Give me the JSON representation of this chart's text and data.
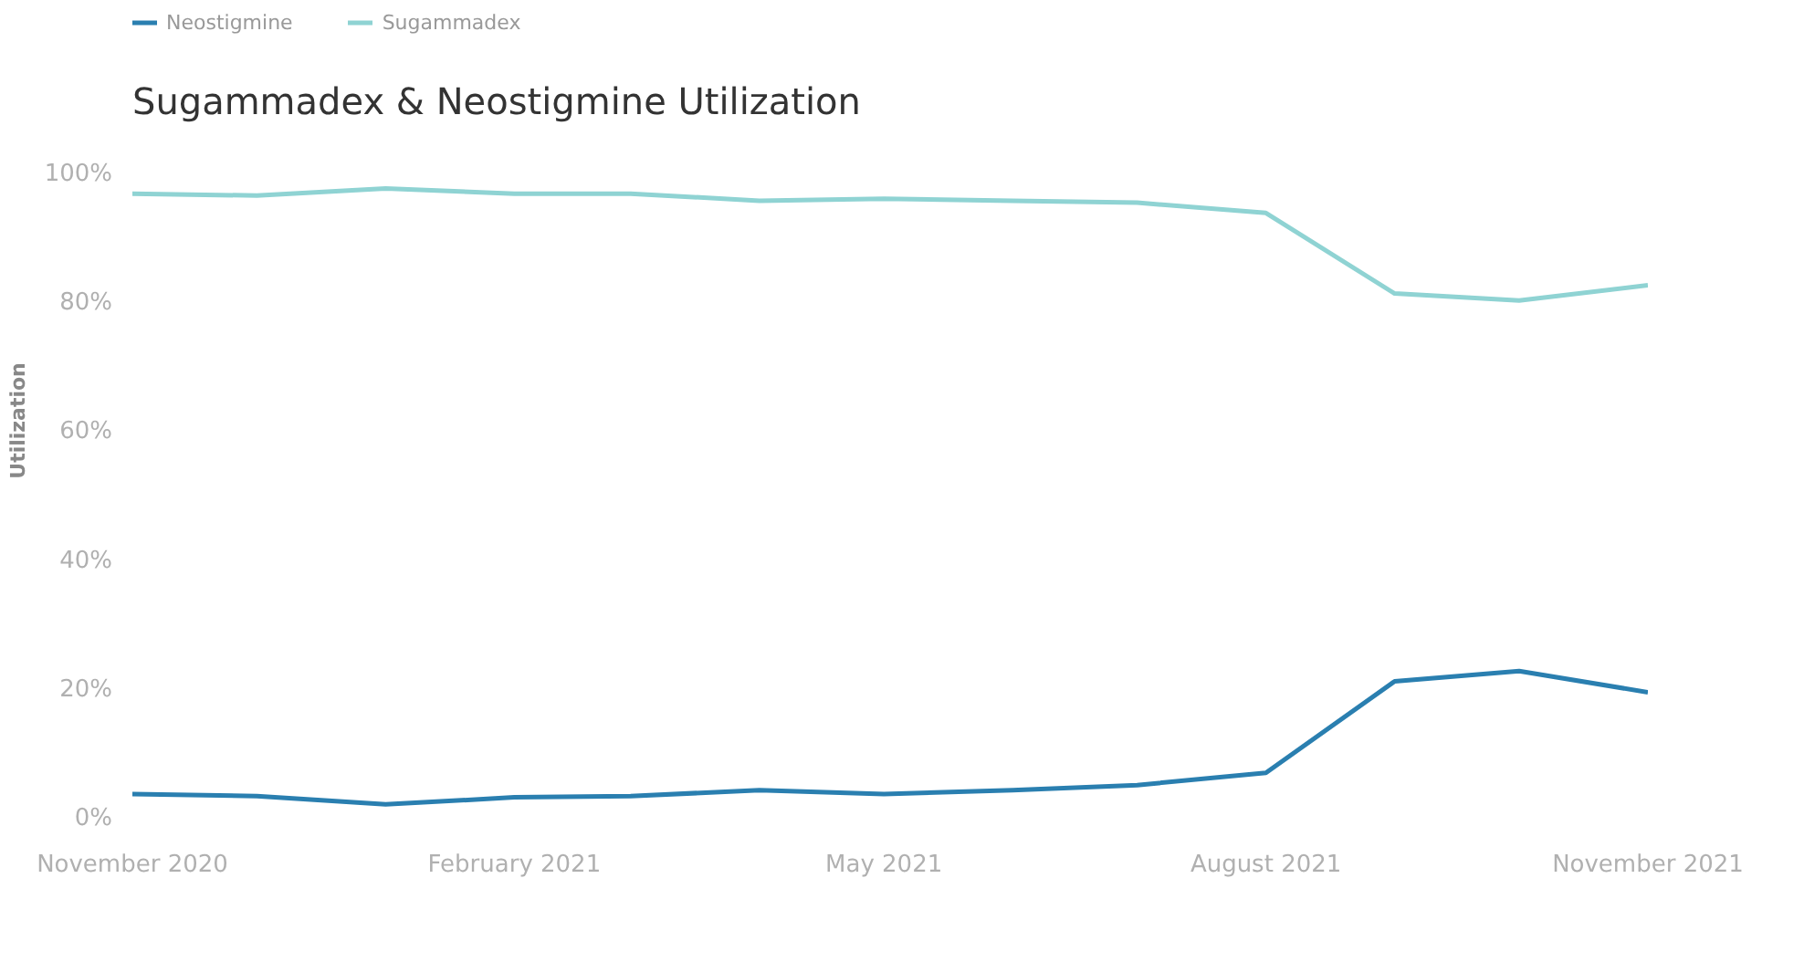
{
  "chart_data": {
    "type": "line",
    "title": "Sugammadex & Neostigmine Utilization",
    "ylabel": "Utilization",
    "x": [
      "2020-11",
      "2020-12",
      "2021-01",
      "2021-02",
      "2021-03",
      "2021-04",
      "2021-05",
      "2021-06",
      "2021-07",
      "2021-08",
      "2021-09",
      "2021-10",
      "2021-11"
    ],
    "series": [
      {
        "name": "Neostigmine",
        "color": "#2a7fb0",
        "values": [
          3.8,
          3.5,
          2.2,
          3.3,
          3.5,
          4.4,
          3.8,
          4.4,
          5.2,
          7.1,
          21.3,
          22.9,
          19.6
        ]
      },
      {
        "name": "Sugammadex",
        "color": "#8fd3d3",
        "values": [
          97,
          96.7,
          97.8,
          97,
          97,
          95.9,
          96.2,
          95.9,
          95.6,
          94,
          81.5,
          80.4,
          82.8
        ]
      }
    ],
    "xlim": [
      "2020-11",
      "2021-11"
    ],
    "ylim": [
      0,
      100
    ],
    "yticks": [
      {
        "value": 0,
        "label": "0%"
      },
      {
        "value": 20,
        "label": "20%"
      },
      {
        "value": 40,
        "label": "40%"
      },
      {
        "value": 60,
        "label": "60%"
      },
      {
        "value": 80,
        "label": "80%"
      },
      {
        "value": 100,
        "label": "100%"
      }
    ],
    "xticks": [
      {
        "value": "2020-11",
        "label": "November 2020"
      },
      {
        "value": "2021-02",
        "label": "February 2021"
      },
      {
        "value": "2021-05",
        "label": "May 2021"
      },
      {
        "value": "2021-08",
        "label": "August 2021"
      },
      {
        "value": "2021-11",
        "label": "November 2021"
      }
    ],
    "grid": false,
    "legend": "top left",
    "marker": "none",
    "line_style": "solid"
  }
}
